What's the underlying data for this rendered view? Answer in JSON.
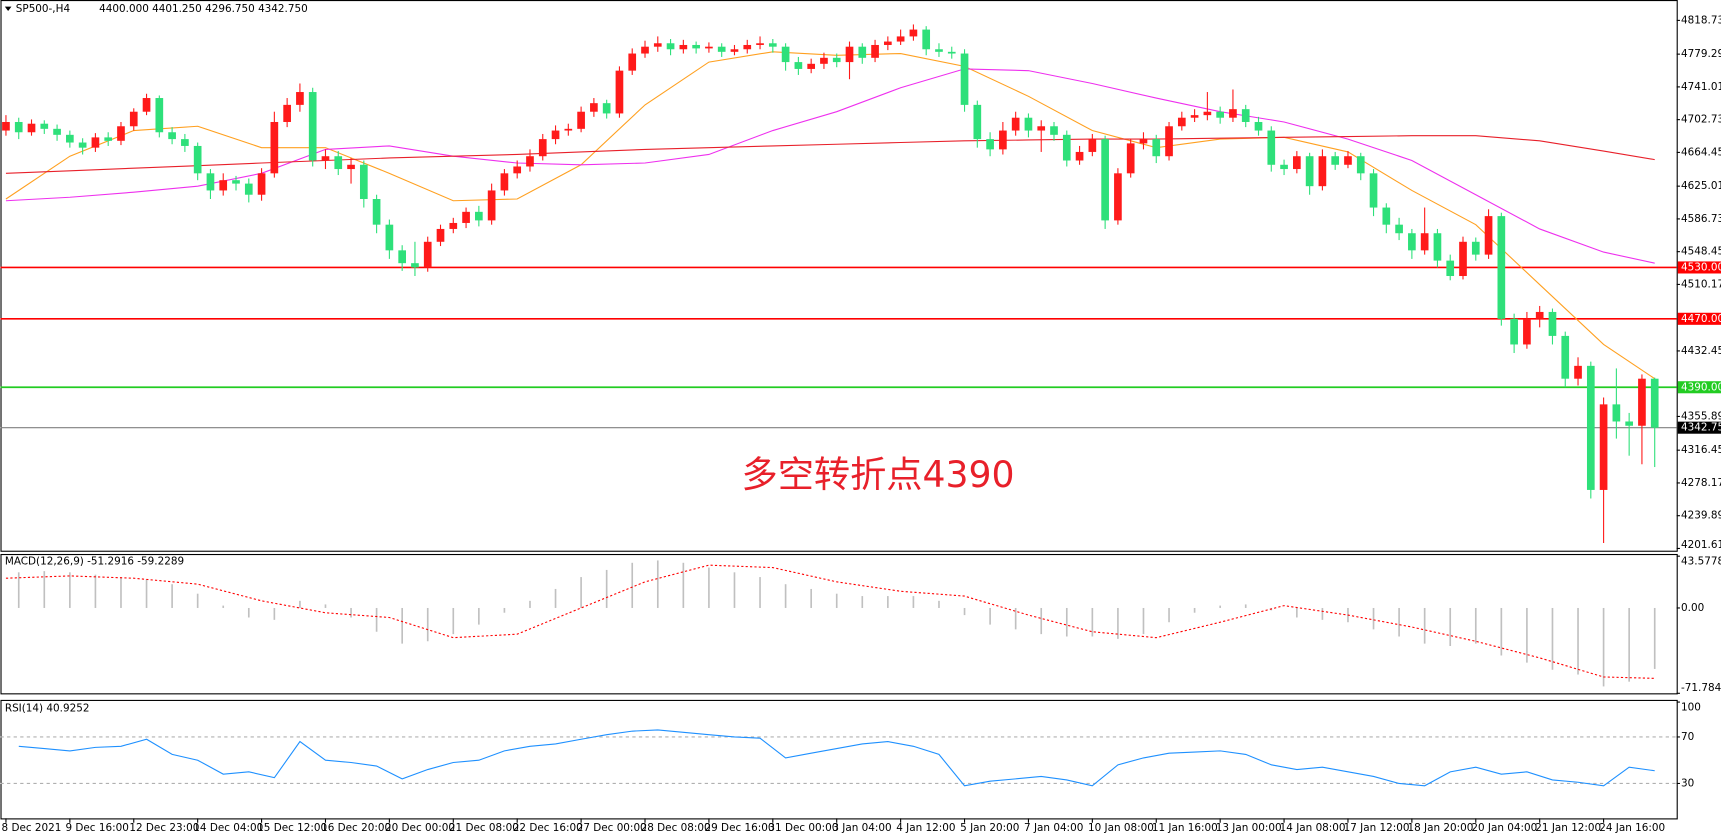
{
  "chart_data": [
    {
      "type": "candlestick",
      "title": "SP500-,H4",
      "quote": "4400.000 4401.250 4296.750 4342.750",
      "annotation": "多空转折点4390",
      "annotation_color": "#e8202a",
      "up_color": "#ff1a1a",
      "down_color": "#2ee07a",
      "xlim": [
        0,
        129
      ],
      "ylim": [
        4199,
        4840
      ],
      "yticks": [
        {
          "value": 4818.73,
          "label": "4818.730"
        },
        {
          "value": 4779.29,
          "label": "4779.290"
        },
        {
          "value": 4741.01,
          "label": "4741.010"
        },
        {
          "value": 4702.73,
          "label": "4702.730"
        },
        {
          "value": 4664.45,
          "label": "4664.450"
        },
        {
          "value": 4625.01,
          "label": "4625.010"
        },
        {
          "value": 4586.73,
          "label": "4586.730"
        },
        {
          "value": 4548.45,
          "label": "4548.450"
        },
        {
          "value": 4510.17,
          "label": "4510.170"
        },
        {
          "value": 4432.45,
          "label": "4432.450"
        },
        {
          "value": 4355.89,
          "label": "4355.890"
        },
        {
          "value": 4316.45,
          "label": "4316.450"
        },
        {
          "value": 4278.17,
          "label": "4278.170"
        },
        {
          "value": 4239.89,
          "label": "4239.890"
        },
        {
          "value": 4201.61,
          "label": "4201.610"
        }
      ],
      "xticks": [
        {
          "value": 0,
          "label": "8 Dec 2021"
        },
        {
          "value": 5,
          "label": "9 Dec 16:00"
        },
        {
          "value": 10,
          "label": "12 Dec 23:00"
        },
        {
          "value": 15,
          "label": "14 Dec 04:00"
        },
        {
          "value": 20,
          "label": "15 Dec 12:00"
        },
        {
          "value": 25,
          "label": "16 Dec 20:00"
        },
        {
          "value": 30,
          "label": "20 Dec 00:00"
        },
        {
          "value": 35,
          "label": "21 Dec 08:00"
        },
        {
          "value": 40,
          "label": "22 Dec 16:00"
        },
        {
          "value": 45,
          "label": "27 Dec 00:00"
        },
        {
          "value": 50,
          "label": "28 Dec 08:00"
        },
        {
          "value": 55,
          "label": "29 Dec 16:00"
        },
        {
          "value": 60,
          "label": "31 Dec 00:00"
        },
        {
          "value": 65,
          "label": "3 Jan 04:00"
        },
        {
          "value": 70,
          "label": "4 Jan 12:00"
        },
        {
          "value": 75,
          "label": "5 Jan 20:00"
        },
        {
          "value": 80,
          "label": "7 Jan 04:00"
        },
        {
          "value": 85,
          "label": "10 Jan 08:00"
        },
        {
          "value": 90,
          "label": "11 Jan 16:00"
        },
        {
          "value": 95,
          "label": "13 Jan 00:00"
        },
        {
          "value": 100,
          "label": "14 Jan 08:00"
        },
        {
          "value": 105,
          "label": "17 Jan 12:00"
        },
        {
          "value": 110,
          "label": "18 Jan 20:00"
        },
        {
          "value": 115,
          "label": "20 Jan 04:00"
        },
        {
          "value": 120,
          "label": "21 Jan 12:00"
        },
        {
          "value": 125,
          "label": "24 Jan 16:00"
        }
      ],
      "hlines": [
        {
          "value": 4530,
          "label": "4530.000",
          "color": "#ff0000"
        },
        {
          "value": 4470,
          "label": "4470.000",
          "color": "#ff0000"
        },
        {
          "value": 4390,
          "label": "4390.000",
          "color": "#22cc22"
        },
        {
          "value": 4342.75,
          "label": "4342.750",
          "color": "#808080"
        }
      ],
      "open": [
        4690,
        4700,
        4688,
        4698,
        4692,
        4685,
        4676,
        4670,
        4682,
        4678,
        4695,
        4712,
        4728,
        4688,
        4680,
        4672,
        4640,
        4620,
        4632,
        4628,
        4615,
        4640,
        4700,
        4720,
        4735,
        4655,
        4660,
        4645,
        4650,
        4610,
        4580,
        4550,
        4535,
        4530,
        4560,
        4575,
        4582,
        4595,
        4585,
        4620,
        4640,
        4648,
        4660,
        4680,
        4690,
        4692,
        4712,
        4722,
        4710,
        4760,
        4780,
        4788,
        4792,
        4785,
        4790,
        4786,
        4788,
        4782,
        4785,
        4790,
        4792,
        4788,
        4770,
        4762,
        4768,
        4775,
        4770,
        4788,
        4775,
        4790,
        4794,
        4800,
        4808,
        4785,
        4782,
        4780,
        4720,
        4680,
        4668,
        4690,
        4705,
        4690,
        4695,
        4685,
        4655,
        4665,
        4680,
        4585,
        4640,
        4675,
        4680,
        4660,
        4695,
        4705,
        4708,
        4712,
        4705,
        4715,
        4700,
        4690,
        4650,
        4645,
        4660,
        4625,
        4660,
        4650,
        4660,
        4640,
        4600,
        4580,
        4570,
        4550,
        4570,
        4538,
        4520,
        4560,
        4545,
        4590,
        4470,
        4440,
        4470,
        4478,
        4450,
        4400,
        4415,
        4270,
        4370,
        4350,
        4345,
        4400
      ],
      "high": [
        4708,
        4705,
        4703,
        4702,
        4697,
        4690,
        4681,
        4687,
        4688,
        4700,
        4716,
        4733,
        4731,
        4694,
        4686,
        4676,
        4645,
        4640,
        4637,
        4634,
        4646,
        4712,
        4728,
        4745,
        4740,
        4668,
        4666,
        4658,
        4655,
        4615,
        4586,
        4556,
        4560,
        4566,
        4580,
        4588,
        4600,
        4602,
        4628,
        4645,
        4655,
        4668,
        4686,
        4696,
        4698,
        4718,
        4728,
        4726,
        4765,
        4786,
        4795,
        4800,
        4797,
        4796,
        4794,
        4793,
        4792,
        4790,
        4796,
        4800,
        4797,
        4792,
        4776,
        4774,
        4781,
        4780,
        4794,
        4792,
        4796,
        4800,
        4808,
        4814,
        4812,
        4792,
        4788,
        4785,
        4725,
        4688,
        4700,
        4712,
        4710,
        4702,
        4700,
        4690,
        4672,
        4686,
        4684,
        4646,
        4680,
        4688,
        4685,
        4700,
        4712,
        4715,
        4735,
        4718,
        4738,
        4720,
        4706,
        4695,
        4656,
        4666,
        4664,
        4668,
        4665,
        4666,
        4664,
        4645,
        4605,
        4588,
        4575,
        4600,
        4575,
        4545,
        4566,
        4565,
        4598,
        4594,
        4476,
        4478,
        4485,
        4482,
        4455,
        4425,
        4420,
        4378,
        4412,
        4360,
        4405,
        4401.25
      ],
      "low": [
        4684,
        4680,
        4684,
        4686,
        4678,
        4670,
        4662,
        4665,
        4672,
        4673,
        4690,
        4708,
        4682,
        4674,
        4665,
        4632,
        4610,
        4614,
        4620,
        4606,
        4608,
        4635,
        4694,
        4712,
        4648,
        4645,
        4638,
        4628,
        4600,
        4570,
        4540,
        4526,
        4520,
        4525,
        4555,
        4570,
        4576,
        4578,
        4580,
        4614,
        4634,
        4642,
        4655,
        4674,
        4684,
        4688,
        4706,
        4704,
        4705,
        4755,
        4775,
        4782,
        4778,
        4780,
        4780,
        4781,
        4776,
        4778,
        4780,
        4785,
        4781,
        4760,
        4755,
        4757,
        4762,
        4764,
        4750,
        4768,
        4770,
        4784,
        4790,
        4795,
        4778,
        4776,
        4774,
        4712,
        4670,
        4660,
        4662,
        4684,
        4682,
        4665,
        4678,
        4648,
        4650,
        4660,
        4575,
        4580,
        4635,
        4668,
        4652,
        4655,
        4690,
        4700,
        4702,
        4698,
        4700,
        4694,
        4684,
        4642,
        4638,
        4640,
        4615,
        4620,
        4644,
        4646,
        4632,
        4590,
        4570,
        4562,
        4540,
        4545,
        4530,
        4515,
        4516,
        4538,
        4540,
        4462,
        4430,
        4435,
        4460,
        4440,
        4390,
        4392,
        4260,
        4208,
        4330,
        4310,
        4300,
        4296.75
      ],
      "close": [
        4700,
        4688,
        4698,
        4692,
        4685,
        4676,
        4670,
        4682,
        4678,
        4695,
        4712,
        4728,
        4688,
        4680,
        4672,
        4640,
        4620,
        4632,
        4628,
        4615,
        4640,
        4700,
        4720,
        4735,
        4655,
        4660,
        4645,
        4650,
        4610,
        4580,
        4550,
        4535,
        4530,
        4560,
        4575,
        4582,
        4595,
        4585,
        4620,
        4640,
        4648,
        4660,
        4680,
        4690,
        4692,
        4712,
        4722,
        4710,
        4760,
        4780,
        4788,
        4792,
        4785,
        4790,
        4786,
        4788,
        4782,
        4785,
        4790,
        4792,
        4788,
        4770,
        4762,
        4768,
        4775,
        4770,
        4788,
        4775,
        4790,
        4794,
        4800,
        4808,
        4785,
        4782,
        4780,
        4720,
        4680,
        4668,
        4690,
        4705,
        4690,
        4695,
        4685,
        4655,
        4665,
        4680,
        4585,
        4640,
        4675,
        4680,
        4660,
        4695,
        4705,
        4708,
        4712,
        4705,
        4715,
        4700,
        4690,
        4650,
        4645,
        4660,
        4625,
        4660,
        4650,
        4660,
        4640,
        4600,
        4580,
        4570,
        4550,
        4570,
        4538,
        4520,
        4560,
        4545,
        4590,
        4470,
        4440,
        4470,
        4478,
        4450,
        4400,
        4415,
        4270,
        4370,
        4350,
        4345,
        4400,
        4342.75
      ],
      "ma_x": [
        0,
        5,
        10,
        15,
        20,
        25,
        30,
        35,
        40,
        45,
        50,
        55,
        60,
        65,
        70,
        75,
        80,
        85,
        90,
        95,
        100,
        105,
        110,
        115,
        120,
        125,
        129
      ],
      "overlays": [
        {
          "color": "#ffa020",
          "values": [
            4610,
            4660,
            4690,
            4695,
            4670,
            4670,
            4640,
            4608,
            4610,
            4650,
            4720,
            4770,
            4782,
            4778,
            4780,
            4765,
            4730,
            4690,
            4670,
            4680,
            4682,
            4665,
            4620,
            4580,
            4510,
            4440,
            4400
          ]
        },
        {
          "color": "#ee30ee",
          "values": [
            4608,
            4612,
            4618,
            4625,
            4640,
            4668,
            4672,
            4660,
            4652,
            4650,
            4652,
            4662,
            4690,
            4712,
            4740,
            4762,
            4760,
            4745,
            4728,
            4712,
            4700,
            4680,
            4655,
            4615,
            4575,
            4548,
            4535
          ]
        },
        {
          "color": "#e8202a",
          "values": [
            4640,
            4643,
            4646,
            4649,
            4652,
            4655,
            4658,
            4660,
            4662,
            4665,
            4668,
            4670,
            4672,
            4674,
            4676,
            4678,
            4679,
            4680,
            4680,
            4681,
            4682,
            4683,
            4684,
            4684,
            4678,
            4666,
            4656
          ]
        }
      ]
    },
    {
      "type": "macd",
      "title": "MACD(12,26,9) -51.2916 -59.2289",
      "ylim": [
        -71.784,
        43.5778
      ],
      "yticks": [
        43.5778,
        {
          "value": 0,
          "label": "0.00"
        },
        -71.784
      ],
      "x": [
        1,
        3,
        5,
        7,
        9,
        11,
        13,
        15,
        17,
        19,
        21,
        23,
        25,
        27,
        29,
        31,
        33,
        35,
        37,
        39,
        41,
        43,
        45,
        47,
        49,
        51,
        53,
        55,
        57,
        59,
        61,
        63,
        65,
        67,
        69,
        71,
        73,
        75,
        77,
        79,
        81,
        83,
        85,
        87,
        89,
        91,
        93,
        95,
        97,
        99,
        101,
        103,
        105,
        107,
        109,
        111,
        113,
        115,
        117,
        119,
        121,
        123,
        125,
        127,
        129
      ],
      "color": "#c0c0c0",
      "values": [
        30,
        31,
        30,
        28,
        26,
        24,
        20,
        12,
        2,
        -8,
        -10,
        6,
        3,
        -8,
        -20,
        -30,
        -28,
        -22,
        -14,
        -4,
        6,
        16,
        26,
        32,
        38,
        40,
        38,
        34,
        30,
        26,
        20,
        16,
        12,
        10,
        10,
        10,
        6,
        -6,
        -14,
        -18,
        -22,
        -24,
        -24,
        -26,
        -22,
        -12,
        -4,
        2,
        3,
        -2,
        -8,
        -10,
        -12,
        -18,
        -24,
        -30,
        -32,
        -30,
        -40,
        -46,
        -52,
        -56,
        -66,
        -62,
        -51.2916
      ],
      "signal": {
        "color": "#ff0000",
        "x": [
          0,
          5,
          10,
          15,
          20,
          25,
          30,
          35,
          40,
          45,
          50,
          55,
          60,
          65,
          70,
          75,
          80,
          85,
          90,
          95,
          100,
          105,
          110,
          115,
          120,
          125,
          129
        ],
        "values": [
          25,
          27,
          25,
          20,
          6,
          -4,
          -8,
          -25,
          -22,
          0,
          22,
          36,
          34,
          22,
          14,
          10,
          -6,
          -20,
          -25,
          -12,
          2,
          -6,
          -16,
          -28,
          -42,
          -58,
          -59.2289
        ]
      }
    },
    {
      "type": "line",
      "title": "RSI(14) 40.9252",
      "ylim": [
        0,
        100
      ],
      "yticks": [
        30,
        70,
        100
      ],
      "color": "#1e90ff",
      "x": [
        1,
        3,
        5,
        7,
        9,
        11,
        13,
        15,
        17,
        19,
        21,
        23,
        25,
        27,
        29,
        31,
        33,
        35,
        37,
        39,
        41,
        43,
        45,
        47,
        49,
        51,
        53,
        55,
        57,
        59,
        61,
        63,
        65,
        67,
        69,
        71,
        73,
        75,
        77,
        79,
        81,
        83,
        85,
        87,
        89,
        91,
        93,
        95,
        97,
        99,
        101,
        103,
        105,
        107,
        109,
        111,
        113,
        115,
        117,
        119,
        121,
        123,
        125,
        127,
        129
      ],
      "values": [
        62,
        60,
        58,
        61,
        62,
        68,
        55,
        50,
        38,
        40,
        35,
        66,
        50,
        48,
        45,
        34,
        42,
        48,
        50,
        58,
        62,
        64,
        68,
        72,
        75,
        76,
        74,
        72,
        70,
        69,
        52,
        56,
        60,
        64,
        66,
        62,
        55,
        28,
        32,
        34,
        36,
        33,
        28,
        46,
        52,
        56,
        57,
        58,
        55,
        46,
        42,
        44,
        40,
        36,
        30,
        28,
        40,
        44,
        38,
        40,
        33,
        31,
        28,
        44,
        40.9252
      ]
    }
  ]
}
